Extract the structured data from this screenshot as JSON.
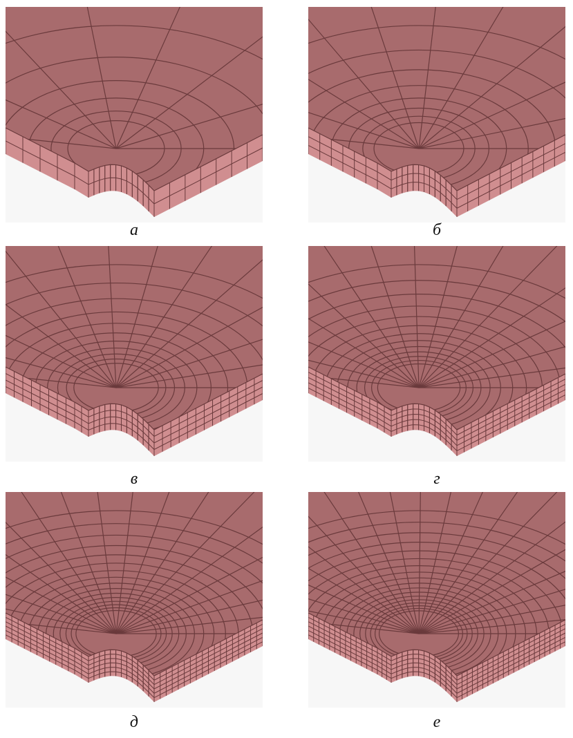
{
  "panels": [
    {
      "label": "а"
    },
    {
      "label": "б"
    },
    {
      "label": "в"
    },
    {
      "label": "г"
    },
    {
      "label": "д"
    },
    {
      "label": "е"
    }
  ]
}
